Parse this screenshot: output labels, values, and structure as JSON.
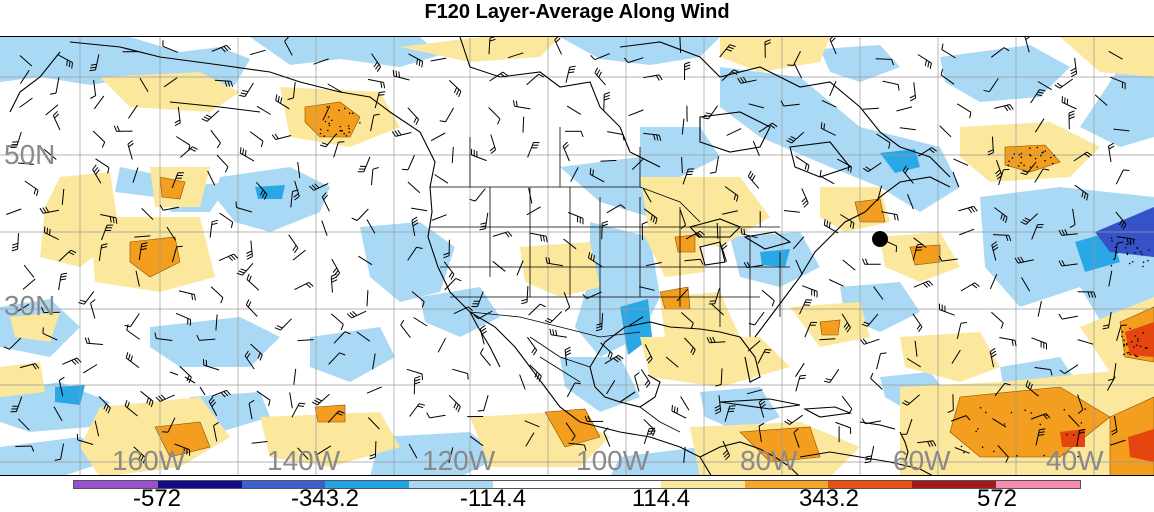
{
  "title": "F120 Layer-Average Along Wind",
  "lat_labels": [
    "50N",
    "30N"
  ],
  "lon_labels": [
    "160W",
    "140W",
    "120W",
    "100W",
    "80W",
    "60W",
    "40W"
  ],
  "colorbar": {
    "colors": [
      "#9a4fd0",
      "#140a8c",
      "#3a5fd2",
      "#1fa5e6",
      "#a8d8f4",
      "#ffffff",
      "#ffffff",
      "#fbe79a",
      "#f7a52a",
      "#e8520e",
      "#a3191a",
      "#f48db0"
    ],
    "labels": [
      "-572",
      "-343.2",
      "-114.4",
      "114.4",
      "343.2",
      "572"
    ]
  },
  "colors": {
    "light_blue": "#a9d9f5",
    "mid_blue": "#2aa7e5",
    "dark_blue": "#3552c8",
    "light_yellow": "#fbe89c",
    "orange": "#f39e1f",
    "red": "#e5450f",
    "grid": "#9a9a9a",
    "coast": "#000000",
    "barbs": "#000000",
    "label_gray": "#8a8a8a"
  },
  "marker": "filled black circle over the western Atlantic"
}
